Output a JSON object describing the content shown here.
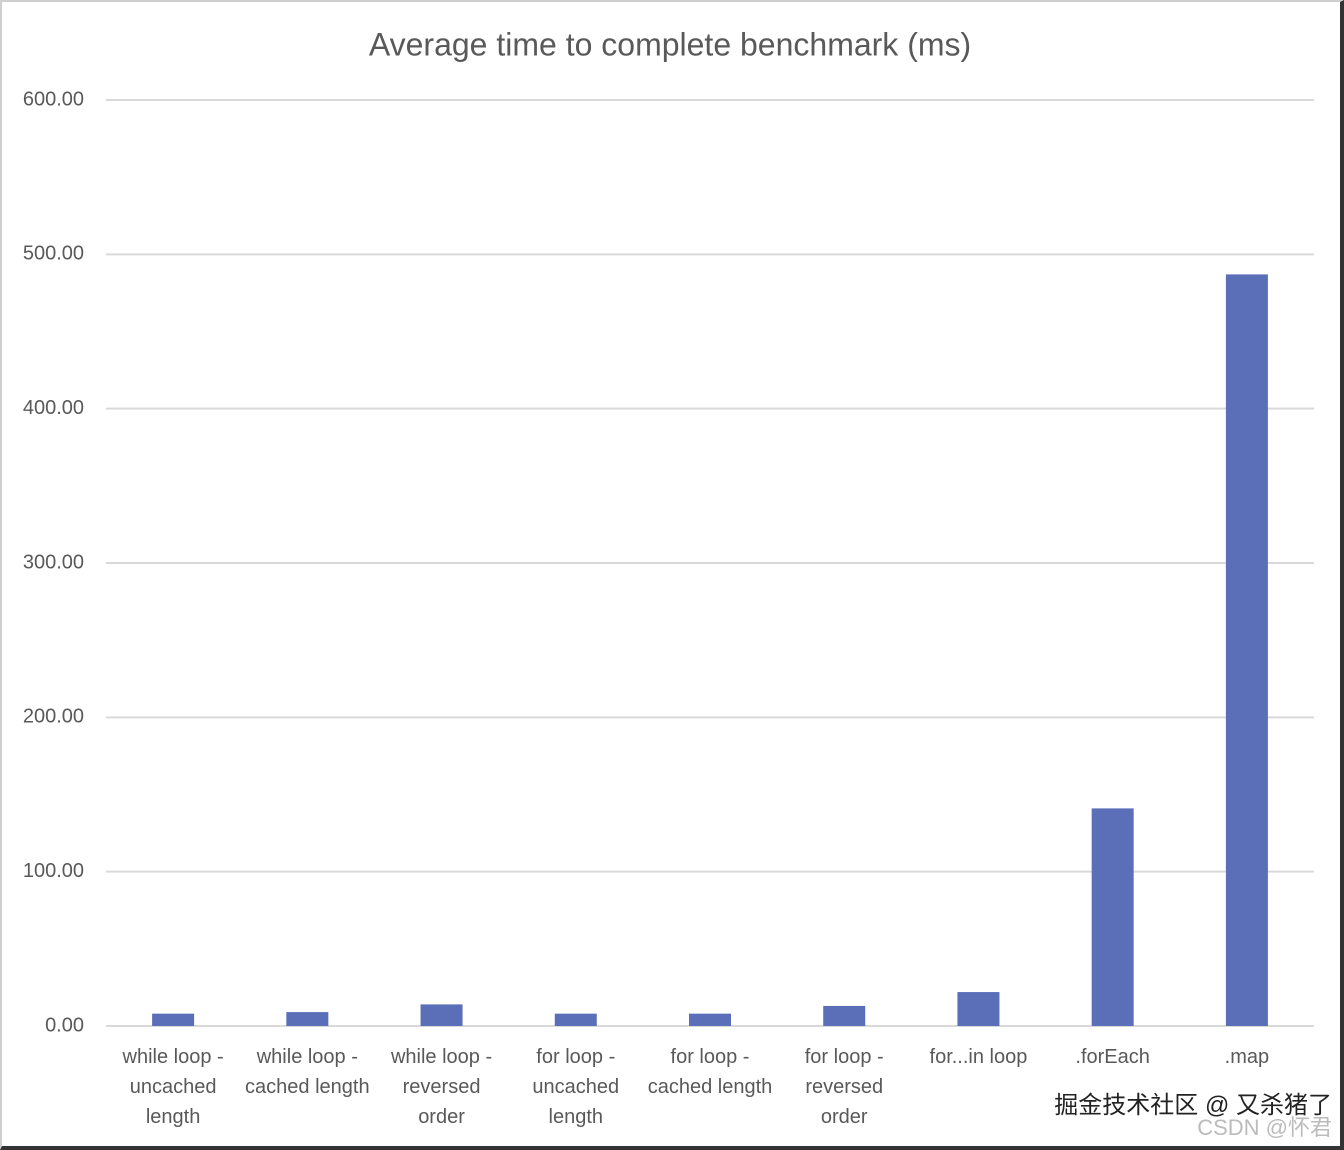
{
  "chart_data": {
    "type": "bar",
    "title": "Average time to complete benchmark (ms)",
    "categories": [
      "while loop - uncached length",
      "while loop - cached length",
      "while loop - reversed order",
      "for loop - uncached length",
      "for loop - cached length",
      "for loop - reversed order",
      "for...in loop",
      ".forEach",
      ".map"
    ],
    "values": [
      8,
      9,
      14,
      8,
      8,
      13,
      22,
      141,
      487
    ],
    "color": "#5b6fb8",
    "ylim": [
      0,
      600
    ],
    "yticks": [
      {
        "value": 0,
        "label": "0.00"
      },
      {
        "value": 100,
        "label": "100.00"
      },
      {
        "value": 200,
        "label": "200.00"
      },
      {
        "value": 300,
        "label": "300.00"
      },
      {
        "value": 400,
        "label": "400.00"
      },
      {
        "value": 500,
        "label": "500.00"
      },
      {
        "value": 600,
        "label": "600.00"
      }
    ],
    "grid": true
  },
  "watermark": {
    "line1": "掘金技术社区 @ 又杀猪了",
    "line2": "CSDN @怀君"
  }
}
